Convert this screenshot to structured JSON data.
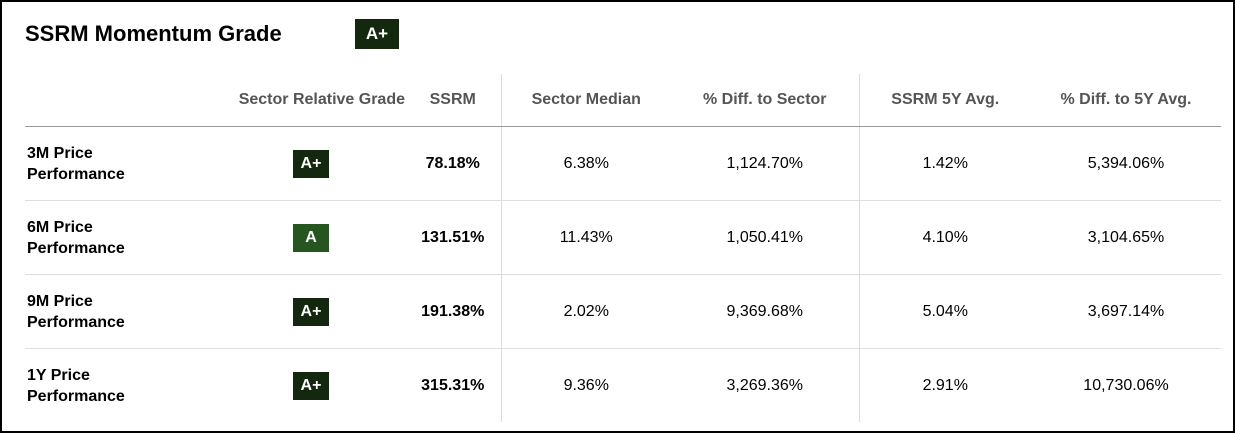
{
  "header": {
    "title": "SSRM Momentum Grade",
    "overall_grade": "A+"
  },
  "table": {
    "columns": [
      "",
      "Sector Relative Grade",
      "SSRM",
      "Sector Median",
      "% Diff. to Sector",
      "SSRM 5Y Avg.",
      "% Diff. to 5Y Avg."
    ],
    "rows": [
      {
        "label_line1": "3M Price",
        "label_line2": "Performance",
        "grade": "A+",
        "ssrm": "78.18%",
        "sector_median": "6.38%",
        "diff_sector": "1,124.70%",
        "avg_5y": "1.42%",
        "diff_5y": "5,394.06%"
      },
      {
        "label_line1": "6M Price",
        "label_line2": "Performance",
        "grade": "A",
        "ssrm": "131.51%",
        "sector_median": "11.43%",
        "diff_sector": "1,050.41%",
        "avg_5y": "4.10%",
        "diff_5y": "3,104.65%"
      },
      {
        "label_line1": "9M Price",
        "label_line2": "Performance",
        "grade": "A+",
        "ssrm": "191.38%",
        "sector_median": "2.02%",
        "diff_sector": "9,369.68%",
        "avg_5y": "5.04%",
        "diff_5y": "3,697.14%"
      },
      {
        "label_line1": "1Y Price",
        "label_line2": "Performance",
        "grade": "A+",
        "ssrm": "315.31%",
        "sector_median": "9.36%",
        "diff_sector": "3,269.36%",
        "avg_5y": "2.91%",
        "diff_5y": "10,730.06%"
      }
    ]
  },
  "colors": {
    "grade_dark": "#13280f",
    "grade_a": "#26551f"
  }
}
